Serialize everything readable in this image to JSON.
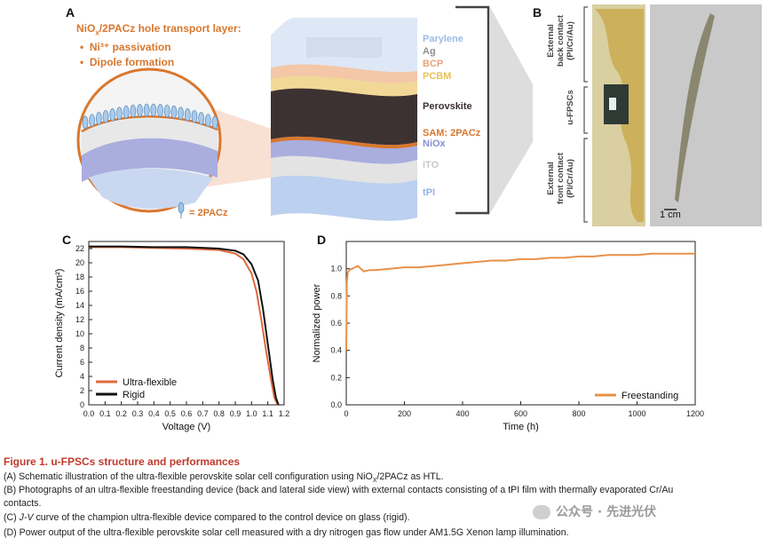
{
  "panel_a": {
    "letter": "A",
    "heading_prefix": "NiO",
    "heading_sub": "x",
    "heading_suffix": "/2PACz hole transport layer:",
    "bullets": [
      "Ni³⁺ passivation",
      "Dipole formation"
    ],
    "legend_label": "= 2PACz",
    "layers": [
      {
        "label": "Parylene",
        "color": "#9dbce4"
      },
      {
        "label": "Ag",
        "color": "#8f8f8f"
      },
      {
        "label": "BCP",
        "color": "#e8a27a"
      },
      {
        "label": "PCBM",
        "color": "#e9c25a"
      },
      {
        "label": "Perovskite",
        "color": "#3a3030"
      },
      {
        "label": "SAM: 2PACz",
        "color": "#d9772e"
      },
      {
        "label": "NiOx",
        "color": "#8a8fd0"
      },
      {
        "label": "ITO",
        "color": "#c9c9c9"
      },
      {
        "label": "tPI",
        "color": "#8fb3e6"
      }
    ]
  },
  "panel_b": {
    "letter": "B",
    "label_top": [
      "External",
      "back contact",
      "(PI/Cr/Au)"
    ],
    "label_mid": "u-FPSCs",
    "label_bot": [
      "External",
      "front contact",
      "(PI/Cr/Au)"
    ],
    "scale_bar": "1 cm"
  },
  "chart_data": [
    {
      "panel": "C",
      "type": "line",
      "xlabel": "Voltage (V)",
      "ylabel": "Current density (mA/cm²)",
      "xlim": [
        0.0,
        1.2
      ],
      "ylim": [
        0,
        23
      ],
      "xticks": [
        "0.0",
        "0.1",
        "0.2",
        "0.3",
        "0.4",
        "0.5",
        "0.6",
        "0.7",
        "0.8",
        "0.9",
        "1.0",
        "1.1",
        "1.2"
      ],
      "yticks": [
        "0",
        "2",
        "4",
        "6",
        "8",
        "10",
        "12",
        "14",
        "16",
        "18",
        "20",
        "22"
      ],
      "legend_position": "bottom-left",
      "series": [
        {
          "name": "Ultra-flexible",
          "color": "#e06a3d",
          "x": [
            0.0,
            0.2,
            0.4,
            0.6,
            0.8,
            0.9,
            0.95,
            1.0,
            1.03,
            1.06,
            1.09,
            1.12,
            1.14,
            1.16
          ],
          "y": [
            22.2,
            22.2,
            22.1,
            22.0,
            21.8,
            21.3,
            20.5,
            18.5,
            16.0,
            12.0,
            7.5,
            3.5,
            1.0,
            0.0
          ]
        },
        {
          "name": "Rigid",
          "color": "#111111",
          "x": [
            0.0,
            0.2,
            0.4,
            0.6,
            0.8,
            0.9,
            0.95,
            1.0,
            1.04,
            1.07,
            1.1,
            1.13,
            1.15,
            1.165
          ],
          "y": [
            22.3,
            22.3,
            22.2,
            22.2,
            22.0,
            21.7,
            21.2,
            19.8,
            17.5,
            13.5,
            8.5,
            3.5,
            1.0,
            0.0
          ]
        }
      ]
    },
    {
      "panel": "D",
      "type": "line",
      "xlabel": "Time (h)",
      "ylabel": "Normalized power",
      "xlim": [
        0,
        1200
      ],
      "ylim": [
        0,
        1.2
      ],
      "xticks": [
        "0",
        "200",
        "400",
        "600",
        "800",
        "1000",
        "1200"
      ],
      "yticks": [
        "0.0",
        "0.2",
        "0.4",
        "0.6",
        "0.8",
        "1.0"
      ],
      "legend_position": "bottom-right",
      "series": [
        {
          "name": "Freestanding",
          "color": "#e8914a",
          "x": [
            0,
            2,
            5,
            10,
            20,
            40,
            60,
            80,
            100,
            150,
            200,
            250,
            300,
            350,
            400,
            450,
            500,
            550,
            600,
            650,
            700,
            750,
            800,
            850,
            900,
            950,
            1000,
            1050,
            1100,
            1150,
            1200
          ],
          "y": [
            0.4,
            0.9,
            0.97,
            0.99,
            1.0,
            1.02,
            0.98,
            0.99,
            0.99,
            1.0,
            1.01,
            1.01,
            1.02,
            1.03,
            1.04,
            1.05,
            1.06,
            1.06,
            1.07,
            1.07,
            1.08,
            1.08,
            1.09,
            1.09,
            1.1,
            1.1,
            1.1,
            1.11,
            1.11,
            1.11,
            1.11
          ]
        }
      ]
    }
  ],
  "caption": {
    "title": "Figure 1.  u-FPSCs structure and performances",
    "line_a_pre": "(A) Schematic illustration of the ultra-flexible perovskite solar cell configuration using NiO",
    "line_a_sub": "X",
    "line_a_post": "/2PACz as HTL.",
    "line_b1": "(B) Photographs of an ultra-flexible freestanding device (back and lateral side view) with external contacts consisting of a tPI film with thermally evaporated Cr/Au",
    "line_b2": "contacts.",
    "line_c_pre": "(C) ",
    "line_c_em": "J-V",
    "line_c_post": " curve of the champion ultra-flexible device compared to the control device on glass (rigid).",
    "line_d": "(D) Power output of the ultra-flexible perovskite solar cell measured with a dry nitrogen gas flow under AM1.5G Xenon lamp illumination."
  },
  "watermark": "公众号 · 先进光伏"
}
